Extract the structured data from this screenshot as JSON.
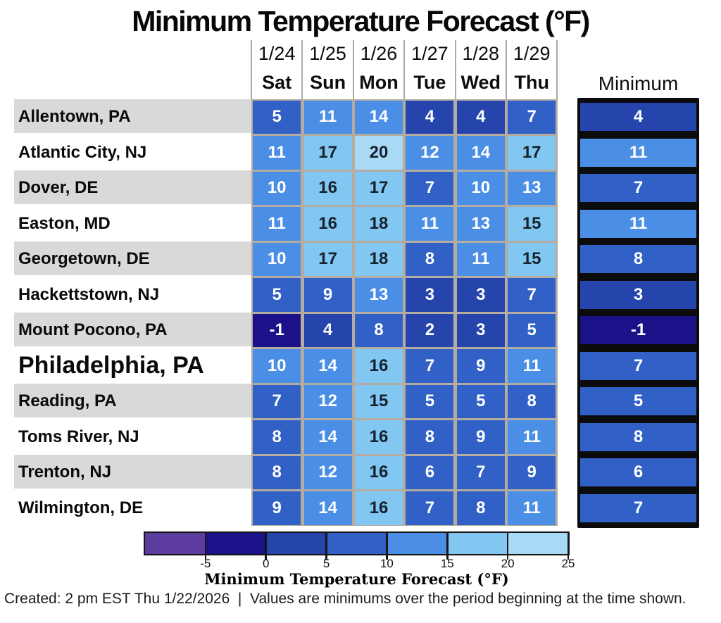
{
  "title": "Minimum Temperature Forecast (°F)",
  "header": {
    "minimum_label": "Minimum"
  },
  "caption": "Created: 2 pm EST Thu 1/22/2026  |  Values are minimums over the period beginning at the time shown.",
  "colors": {
    "row_band": "#D9D9D9",
    "grid_gap": "#B4ACA1",
    "cell_text_light": "#FFFFFF",
    "cell_text_dark": "#16232E",
    "min_column_frame": "#0B0B0B",
    "header_separator": "#A9A9A9"
  },
  "chart_data": {
    "type": "heatmap",
    "title": "Minimum Temperature Forecast (°F)",
    "columns": [
      {
        "date": "1/24",
        "day": "Sat"
      },
      {
        "date": "1/25",
        "day": "Sun"
      },
      {
        "date": "1/26",
        "day": "Mon"
      },
      {
        "date": "1/27",
        "day": "Tue"
      },
      {
        "date": "1/28",
        "day": "Wed"
      },
      {
        "date": "1/29",
        "day": "Thu"
      }
    ],
    "minimum_column_label": "Minimum",
    "rows": [
      {
        "city": "Allentown, PA",
        "values": [
          5,
          11,
          14,
          4,
          4,
          7
        ],
        "min": 4,
        "emphasis": false
      },
      {
        "city": "Atlantic City, NJ",
        "values": [
          11,
          17,
          20,
          12,
          14,
          17
        ],
        "min": 11,
        "emphasis": false
      },
      {
        "city": "Dover, DE",
        "values": [
          10,
          16,
          17,
          7,
          10,
          13
        ],
        "min": 7,
        "emphasis": false
      },
      {
        "city": "Easton, MD",
        "values": [
          11,
          16,
          18,
          11,
          13,
          15
        ],
        "min": 11,
        "emphasis": false
      },
      {
        "city": "Georgetown, DE",
        "values": [
          10,
          17,
          18,
          8,
          11,
          15
        ],
        "min": 8,
        "emphasis": false
      },
      {
        "city": "Hackettstown, NJ",
        "values": [
          5,
          9,
          13,
          3,
          3,
          7
        ],
        "min": 3,
        "emphasis": false
      },
      {
        "city": "Mount Pocono, PA",
        "values": [
          -1,
          4,
          8,
          2,
          3,
          5
        ],
        "min": -1,
        "emphasis": false
      },
      {
        "city": "Philadelphia, PA",
        "values": [
          10,
          14,
          16,
          7,
          9,
          11
        ],
        "min": 7,
        "emphasis": true
      },
      {
        "city": "Reading, PA",
        "values": [
          7,
          12,
          15,
          5,
          5,
          8
        ],
        "min": 5,
        "emphasis": false
      },
      {
        "city": "Toms River, NJ",
        "values": [
          8,
          14,
          16,
          8,
          9,
          11
        ],
        "min": 8,
        "emphasis": false
      },
      {
        "city": "Trenton, NJ",
        "values": [
          8,
          12,
          16,
          6,
          7,
          9
        ],
        "min": 6,
        "emphasis": false
      },
      {
        "city": "Wilmington, DE",
        "values": [
          9,
          14,
          16,
          7,
          8,
          11
        ],
        "min": 7,
        "emphasis": false
      }
    ],
    "colorbar": {
      "label": "Minimum Temperature Forecast (°F)",
      "range": [
        -10,
        25
      ],
      "ticks": [
        -5,
        0,
        5,
        10,
        15,
        20,
        25
      ],
      "bins": [
        {
          "min": -10,
          "max": -5,
          "color": "#5C3C9E"
        },
        {
          "min": -5,
          "max": 0,
          "color": "#1B1188"
        },
        {
          "min": 0,
          "max": 5,
          "color": "#2645AC"
        },
        {
          "min": 5,
          "max": 10,
          "color": "#3161C6"
        },
        {
          "min": 10,
          "max": 15,
          "color": "#4A8EE6"
        },
        {
          "min": 15,
          "max": 20,
          "color": "#82C7F1"
        },
        {
          "min": 20,
          "max": 25,
          "color": "#A8DAF5"
        }
      ],
      "dark_text_threshold": 15
    }
  }
}
